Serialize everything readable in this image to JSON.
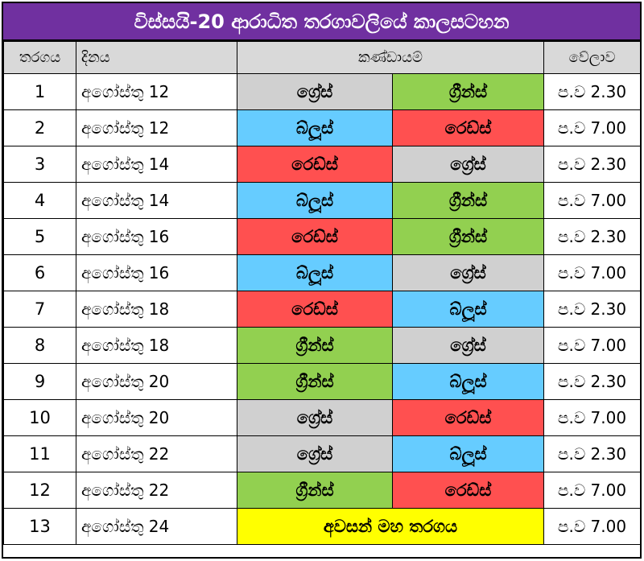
{
  "title": "විස්සයි-20 ආරාධිත තරගාවලියේ කාලසටහන",
  "headers": {
    "match": "තරගය",
    "date": "දිනය",
    "teams": "කණ්ඩායම්",
    "time": "වේලාව"
  },
  "colors": {
    "title_bg": "#7030a0",
    "header_bg": "#d9d9d9",
    "grays": "#d0d0d0",
    "greens": "#92d050",
    "blues": "#66ccff",
    "reds": "#ff5050",
    "final": "#ffff00"
  },
  "rows": [
    {
      "no": "1",
      "date": "අගෝස්තු 12",
      "team1": "ග්‍රේස්",
      "c1": "#d0d0d0",
      "team2": "ග්‍රීන්ස්",
      "c2": "#92d050",
      "time": "ප.ව 2.30"
    },
    {
      "no": "2",
      "date": "අගෝස්තු 12",
      "team1": "බ්ලූස්",
      "c1": "#66ccff",
      "team2": "රෙඩ්ස්",
      "c2": "#ff5050",
      "time": "ප.ව 7.00"
    },
    {
      "no": "3",
      "date": "අගෝස්තු 14",
      "team1": "රෙඩ්ස්",
      "c1": "#ff5050",
      "team2": "ග්‍රේස්",
      "c2": "#d0d0d0",
      "time": "ප.ව 2.30"
    },
    {
      "no": "4",
      "date": "අගෝස්තු 14",
      "team1": "බ්ලූස්",
      "c1": "#66ccff",
      "team2": "ග්‍රීන්ස්",
      "c2": "#92d050",
      "time": "ප.ව 7.00"
    },
    {
      "no": "5",
      "date": "අගෝස්තු 16",
      "team1": "රෙඩ්ස්",
      "c1": "#ff5050",
      "team2": "ග්‍රීන්ස්",
      "c2": "#92d050",
      "time": "ප.ව 2.30"
    },
    {
      "no": "6",
      "date": "අගෝස්තු 16",
      "team1": "බ්ලූස්",
      "c1": "#66ccff",
      "team2": "ග්‍රේස්",
      "c2": "#d0d0d0",
      "time": "ප.ව 7.00"
    },
    {
      "no": "7",
      "date": "අගෝස්තු 18",
      "team1": "රෙඩ්ස්",
      "c1": "#ff5050",
      "team2": "බ්ලූස්",
      "c2": "#66ccff",
      "time": "ප.ව 2.30"
    },
    {
      "no": "8",
      "date": "අගෝස්තු 18",
      "team1": "ග්‍රීන්ස්",
      "c1": "#92d050",
      "team2": "ග්‍රේස්",
      "c2": "#d0d0d0",
      "time": "ප.ව 7.00"
    },
    {
      "no": "9",
      "date": "අගෝස්තු 20",
      "team1": "ග්‍රීන්ස්",
      "c1": "#92d050",
      "team2": "බ්ලූස්",
      "c2": "#66ccff",
      "time": "ප.ව 2.30"
    },
    {
      "no": "10",
      "date": "අගෝස්තු 20",
      "team1": "ග්‍රේස්",
      "c1": "#d0d0d0",
      "team2": "රෙඩ්ස්",
      "c2": "#ff5050",
      "time": "ප.ව 7.00"
    },
    {
      "no": "11",
      "date": "අගෝස්තු 22",
      "team1": "ග්‍රේස්",
      "c1": "#d0d0d0",
      "team2": "බ්ලූස්",
      "c2": "#66ccff",
      "time": "ප.ව 2.30"
    },
    {
      "no": "12",
      "date": "අගෝස්තු 22",
      "team1": "ග්‍රීන්ස්",
      "c1": "#92d050",
      "team2": "රෙඩ්ස්",
      "c2": "#ff5050",
      "time": "ප.ව 7.00"
    }
  ],
  "final": {
    "no": "13",
    "date": "අගෝස්තු 24",
    "label": "අවසන් මහ තරගය",
    "color": "#ffff00",
    "time": "ප.ව 7.00"
  }
}
